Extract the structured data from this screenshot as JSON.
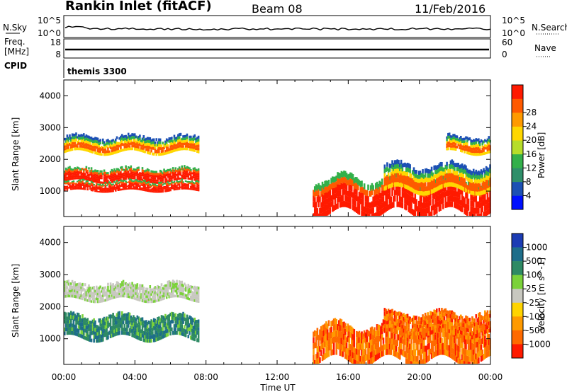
{
  "header": {
    "station": "Rankin Inlet (fitACF)",
    "beam": "Beam 08",
    "date": "11/Feb/2016"
  },
  "strip_panels": {
    "nsky_label": "N.Sky",
    "nsearch_label": "N.Search",
    "noise_ticks": [
      "10^5",
      "10^0"
    ],
    "freq_label": "Freq.",
    "freq_unit": "[MHz]",
    "freq_ticks": [
      "18",
      "8"
    ],
    "nave_label": "Nave",
    "nave_ticks": [
      "60",
      "0"
    ],
    "cpid_label": "CPID",
    "cpid_value": "themis 3300"
  },
  "colors": {
    "power_scale": [
      "#0010ff",
      "#1c50b4",
      "#2f8f6a",
      "#33b04a",
      "#b6dd2a",
      "#ffd700",
      "#ff9a00",
      "#ff5a00",
      "#ff1a00"
    ],
    "velocity_scale": [
      "#1c3cb4",
      "#1e6e8a",
      "#2e8a64",
      "#7bd23a",
      "#c8c8c0",
      "#ffd400",
      "#ff9a00",
      "#ff6a00",
      "#ff1a00"
    ]
  },
  "chart_data": [
    {
      "type": "heatmap",
      "title": "Power",
      "xlabel": "",
      "ylabel": "Slant Range [km]",
      "colorbar_label": "Power [dB]",
      "colorbar_ticks": [
        "4",
        "8",
        "12",
        "16",
        "20",
        "24",
        "28"
      ],
      "xlim": [
        0,
        24
      ],
      "ylim": [
        200,
        4500
      ],
      "yticks": [
        "1000",
        "2000",
        "3000",
        "4000"
      ],
      "features": [
        {
          "x": [
            0.0,
            7.6
          ],
          "y": [
            1300,
            1700
          ],
          "level": "strong"
        },
        {
          "x": [
            0.0,
            7.6
          ],
          "y": [
            1000,
            1300
          ],
          "level": "strong"
        },
        {
          "x": [
            0.0,
            7.6
          ],
          "y": [
            2200,
            2700
          ],
          "level": "medium"
        },
        {
          "x": [
            14.0,
            24.0
          ],
          "y": [
            300,
            1400
          ],
          "level": "strong"
        },
        {
          "x": [
            18.0,
            24.0
          ],
          "y": [
            1000,
            1800
          ],
          "level": "medium"
        },
        {
          "x": [
            21.5,
            24.0
          ],
          "y": [
            2200,
            2700
          ],
          "level": "medium"
        }
      ]
    },
    {
      "type": "heatmap",
      "title": "Velocity",
      "xlabel": "Time UT",
      "ylabel": "Slant Range [km]",
      "colorbar_label": "Velocity [m s^-1]",
      "colorbar_ticks": [
        "1000",
        "500",
        "100",
        "25",
        "-25",
        "-100",
        "-500",
        "-1000"
      ],
      "xlim": [
        0,
        24
      ],
      "ylim": [
        200,
        4500
      ],
      "yticks": [
        "1000",
        "2000",
        "3000",
        "4000"
      ],
      "xticks": [
        "00:00",
        "04:00",
        "08:00",
        "12:00",
        "16:00",
        "20:00",
        "00:00"
      ],
      "features": [
        {
          "x": [
            0.0,
            7.6
          ],
          "y": [
            1000,
            1700
          ],
          "level": "toward"
        },
        {
          "x": [
            0.0,
            7.6
          ],
          "y": [
            2200,
            2700
          ],
          "level": "near-zero"
        },
        {
          "x": [
            14.0,
            24.0
          ],
          "y": [
            300,
            1400
          ],
          "level": "away"
        },
        {
          "x": [
            18.0,
            24.0
          ],
          "y": [
            1100,
            1800
          ],
          "level": "away"
        }
      ]
    }
  ]
}
